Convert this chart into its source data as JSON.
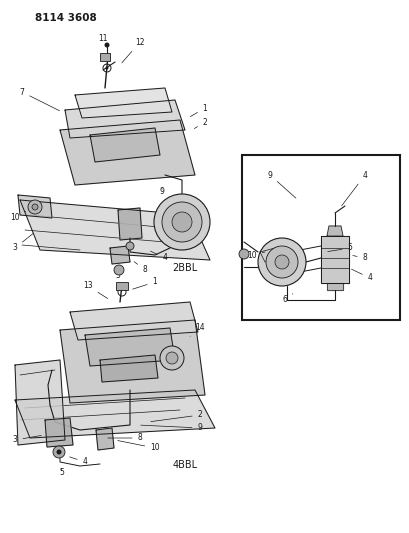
{
  "title": "8114 3608",
  "bg": "#ffffff",
  "fg": "#1a1a1a",
  "gray1": "#888888",
  "gray2": "#bbbbbb",
  "gray3": "#dddddd",
  "figsize": [
    4.1,
    5.33
  ],
  "dpi": 100,
  "label_2bbl": "2BBL",
  "label_4bbl": "4BBL",
  "font_title": 7.5,
  "font_label": 5.5,
  "font_sublabel": 7.0
}
